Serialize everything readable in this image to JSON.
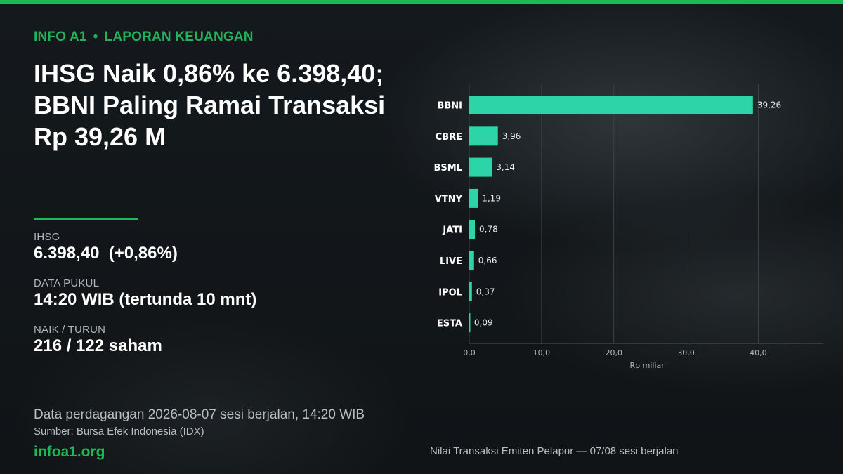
{
  "header": {
    "brand": "INFO A1",
    "separator": "•",
    "section": "LAPORAN KEUANGAN",
    "headline_lines": [
      "IHSG Naik 0,86% ke 6.398,40;",
      "BBNI Paling Ramai Transaksi",
      "Rp 39,26 M"
    ]
  },
  "stats": [
    {
      "label": "IHSG",
      "value": "6.398,40  (+0,86%)"
    },
    {
      "label": "DATA PUKUL",
      "value": "14:20 WIB (tertunda 10 mnt)"
    },
    {
      "label": "NAIK / TURUN",
      "value": "216 / 122 saham"
    }
  ],
  "footer": {
    "note": "Data perdagangan 2026-08-07 sesi berjalan, 14:20 WIB",
    "source": "Sumber: Bursa Efek Indonesia (IDX)",
    "site": "infoa1.org",
    "chart_caption": "Nilai Transaksi Emiten Pelapor — 07/08 sesi berjalan"
  },
  "colors": {
    "accent": "#1db954",
    "bar": "#2dd4a8",
    "background": "#11161a"
  },
  "chart_data": {
    "type": "bar",
    "orientation": "horizontal",
    "categories": [
      "BBNI",
      "CBRE",
      "BSML",
      "VTNY",
      "JATI",
      "LIVE",
      "IPOL",
      "ESTA"
    ],
    "values": [
      39.26,
      3.96,
      3.14,
      1.19,
      0.78,
      0.66,
      0.37,
      0.09
    ],
    "value_labels": [
      "39,26",
      "3,96",
      "3,14",
      "1,19",
      "0,78",
      "0,66",
      "0,37",
      "0,09"
    ],
    "xlabel": "Rp miliar",
    "xlim": [
      0,
      49
    ],
    "xticks": [
      0,
      10,
      20,
      30,
      40
    ],
    "xtick_labels": [
      "0,0",
      "10,0",
      "20,0",
      "30,0",
      "40,0"
    ],
    "grid": true
  }
}
